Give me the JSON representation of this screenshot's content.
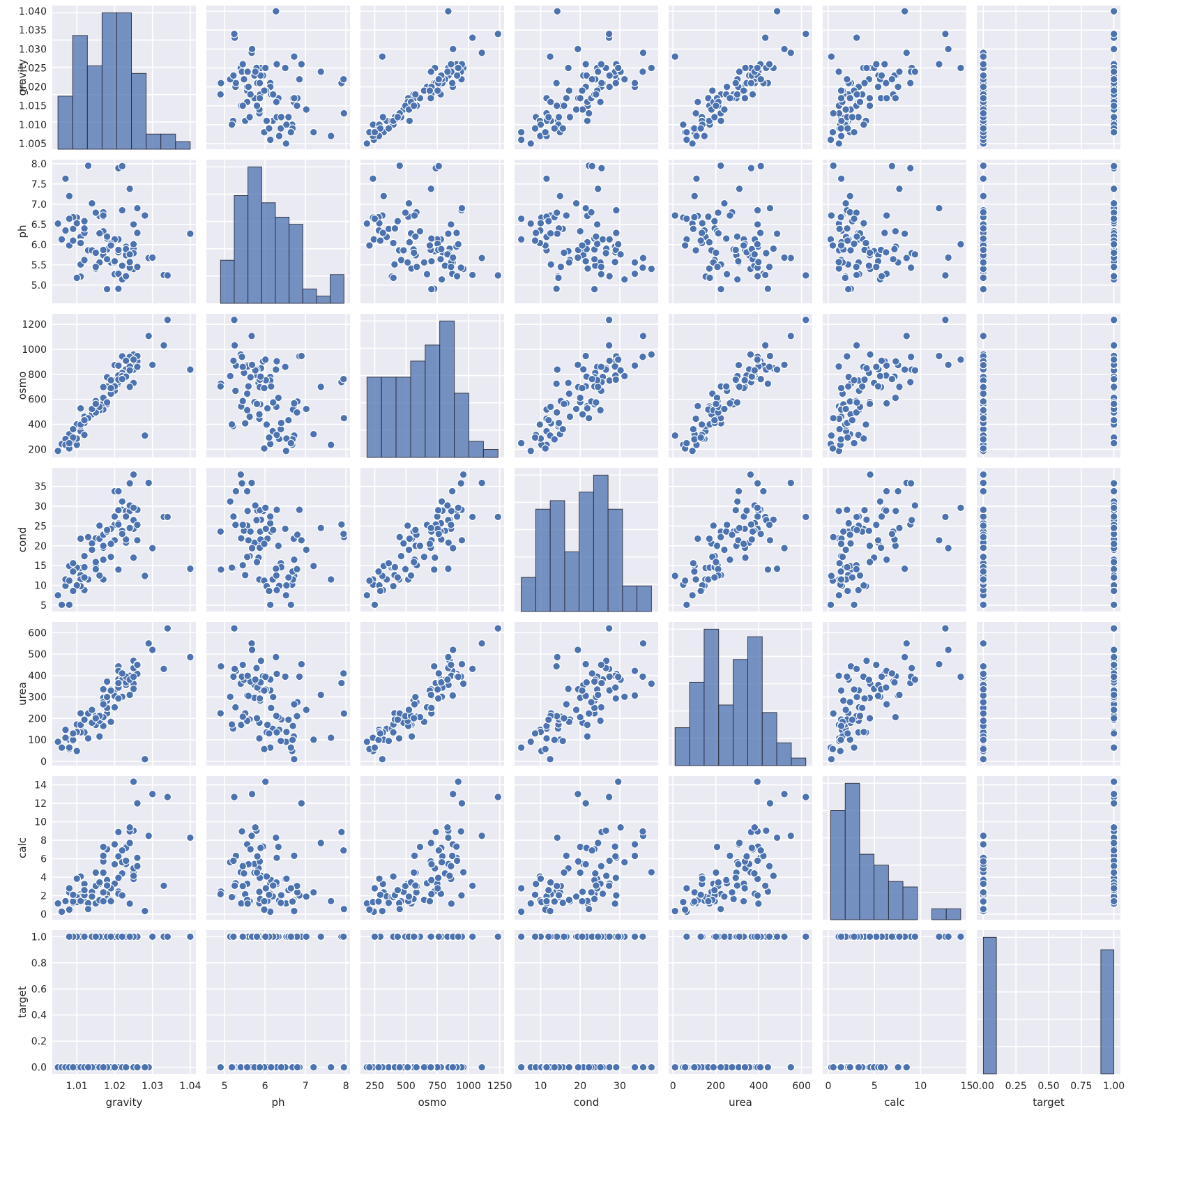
{
  "chart_data": {
    "type": "scatter",
    "layout": "pairplot",
    "grid": true,
    "variables": [
      {
        "name": "gravity",
        "range": [
          1.0035,
          1.0415
        ],
        "ticks": [
          1.01,
          1.02,
          1.03,
          1.04
        ],
        "tick_labels": [
          "1.01",
          "1.02",
          "1.03",
          "1.04"
        ],
        "ytick_labels": [
          "1.005",
          "1.010",
          "1.015",
          "1.020",
          "1.025",
          "1.030",
          "1.035",
          "1.040"
        ],
        "yticks": [
          1.005,
          1.01,
          1.015,
          1.02,
          1.025,
          1.03,
          1.035,
          1.04
        ]
      },
      {
        "name": "ph",
        "range": [
          4.55,
          8.1
        ],
        "ticks": [
          5,
          6,
          7,
          8
        ],
        "tick_labels": [
          "5",
          "6",
          "7",
          "8"
        ],
        "yticks": [
          5.0,
          5.5,
          6.0,
          6.5,
          7.0,
          7.5,
          8.0
        ],
        "ytick_labels": [
          "5.0",
          "5.5",
          "6.0",
          "6.5",
          "7.0",
          "7.5",
          "8.0"
        ]
      },
      {
        "name": "osmo",
        "range": [
          135,
          1285
        ],
        "ticks": [
          250,
          500,
          750,
          1000,
          1250
        ],
        "tick_labels": [
          "250",
          "500",
          "750",
          "1000",
          "1250"
        ],
        "yticks": [
          200,
          400,
          600,
          800,
          1000,
          1200
        ],
        "ytick_labels": [
          "200",
          "400",
          "600",
          "800",
          "1000",
          "1200"
        ]
      },
      {
        "name": "cond",
        "range": [
          3.4,
          39.7
        ],
        "ticks": [
          10,
          20,
          30
        ],
        "tick_labels": [
          "10",
          "20",
          "30"
        ],
        "yticks": [
          5,
          10,
          15,
          20,
          25,
          30,
          35
        ],
        "ytick_labels": [
          "5",
          "10",
          "15",
          "20",
          "25",
          "30",
          "35"
        ]
      },
      {
        "name": "urea",
        "range": [
          -20,
          650
        ],
        "ticks": [
          0,
          200,
          400,
          600
        ],
        "tick_labels": [
          "0",
          "200",
          "400",
          "600"
        ],
        "yticks": [
          0,
          100,
          200,
          300,
          400,
          500,
          600
        ],
        "ytick_labels": [
          "0",
          "100",
          "200",
          "300",
          "400",
          "500",
          "600"
        ]
      },
      {
        "name": "calc",
        "range": [
          -0.6,
          14.95
        ],
        "ticks": [
          0,
          5,
          10,
          15
        ],
        "tick_labels": [
          "0",
          "5",
          "10",
          "15"
        ],
        "yticks": [
          0,
          2,
          4,
          6,
          8,
          10,
          12,
          14
        ],
        "ytick_labels": [
          "0",
          "2",
          "4",
          "6",
          "8",
          "10",
          "12",
          "14"
        ]
      },
      {
        "name": "target",
        "range": [
          -0.05,
          1.05
        ],
        "ticks": [
          0,
          0.25,
          0.5,
          0.75,
          1.0
        ],
        "tick_labels": [
          "0.00",
          "0.25",
          "0.50",
          "0.75",
          "1.00"
        ],
        "yticks": [
          0,
          0.2,
          0.4,
          0.6,
          0.8,
          1.0
        ],
        "ytick_labels": [
          "0.0",
          "0.2",
          "0.4",
          "0.6",
          "0.8",
          "1.0"
        ]
      }
    ],
    "columns": [
      "gravity",
      "ph",
      "osmo",
      "cond",
      "urea",
      "calc",
      "target"
    ],
    "rows": [
      [
        1.021,
        4.91,
        725,
        14.0,
        443,
        2.45,
        0
      ],
      [
        1.017,
        5.74,
        577,
        20.0,
        296,
        4.49,
        0
      ],
      [
        1.008,
        7.2,
        321,
        14.9,
        101,
        2.36,
        0
      ],
      [
        1.011,
        5.51,
        408,
        12.6,
        224,
        2.15,
        0
      ],
      [
        1.005,
        6.52,
        187,
        7.5,
        91,
        1.16,
        0
      ],
      [
        1.02,
        5.27,
        668,
        25.3,
        252,
        3.34,
        0
      ],
      [
        1.012,
        5.62,
        461,
        17.4,
        195,
        1.4,
        0
      ],
      [
        1.029,
        5.67,
        1107,
        35.9,
        550,
        8.48,
        0
      ],
      [
        1.015,
        5.41,
        543,
        21.9,
        170,
        1.16,
        0
      ],
      [
        1.021,
        6.13,
        779,
        25.7,
        382,
        2.21,
        0
      ],
      [
        1.011,
        6.19,
        345,
        11.5,
        152,
        1.93,
        0
      ],
      [
        1.025,
        5.4,
        959,
        38.0,
        362,
        4.54,
        0
      ],
      [
        1.006,
        6.13,
        242,
        5.1,
        64,
        0.27,
        0
      ],
      [
        1.007,
        6.35,
        283,
        9.9,
        147,
        1.47,
        0
      ],
      [
        1.011,
        5.21,
        386,
        14.4,
        153,
        1.87,
        0
      ],
      [
        1.018,
        4.9,
        703,
        23.6,
        224,
        2.17,
        0
      ],
      [
        1.007,
        7.63,
        235,
        11.5,
        110,
        1.41,
        0
      ],
      [
        1.025,
        5.84,
        731,
        17.0,
        338,
        4.96,
        0
      ],
      [
        1.012,
        6.29,
        315,
        8.8,
        135,
        3.27,
        0
      ],
      [
        1.02,
        6.13,
        750,
        27.4,
        331,
        3.3,
        0
      ],
      [
        1.01,
        5.18,
        399,
        14.5,
        172,
        1.84,
        0
      ],
      [
        1.013,
        5.86,
        445,
        11.5,
        107,
        1.18,
        0
      ],
      [
        1.009,
        6.39,
        361,
        15.6,
        95,
        1.22,
        0
      ],
      [
        1.01,
        6.67,
        236,
        10.2,
        48,
        1.31,
        0
      ],
      [
        1.016,
        6.71,
        546,
        21.8,
        116,
        1.52,
        0
      ],
      [
        1.022,
        6.85,
        944,
        29.1,
        395,
        2.03,
        0
      ],
      [
        1.014,
        5.86,
        480,
        20.6,
        180,
        2.42,
        0
      ],
      [
        1.011,
        6.06,
        528,
        21.8,
        170,
        1.43,
        0
      ],
      [
        1.018,
        5.88,
        560,
        23.6,
        283,
        1.64,
        0
      ],
      [
        1.025,
        6.5,
        860,
        24.3,
        395,
        3.81,
        0
      ],
      [
        1.026,
        6.29,
        905,
        29.1,
        408,
        6.1,
        0
      ],
      [
        1.008,
        5.98,
        207,
        11.2,
        57,
        0.49,
        0
      ],
      [
        1.012,
        6.4,
        411,
        14.6,
        195,
        2.05,
        0
      ],
      [
        1.028,
        6.72,
        310,
        12.4,
        10,
        0.34,
        0
      ],
      [
        1.019,
        5.56,
        645,
        17.2,
        184,
        1.55,
        0
      ],
      [
        1.017,
        6.69,
        518,
        11.5,
        165,
        1.4,
        0
      ],
      [
        1.023,
        5.74,
        840,
        20.8,
        356,
        5.43,
        0
      ],
      [
        1.018,
        6.15,
        703,
        23.6,
        249,
        3.68,
        0
      ],
      [
        1.009,
        6.68,
        280,
        13.5,
        100,
        1.37,
        0
      ],
      [
        1.017,
        6.8,
        583,
        22.8,
        276,
        2.36,
        0
      ],
      [
        1.013,
        7.95,
        449,
        22.2,
        223,
        0.55,
        0
      ],
      [
        1.016,
        5.56,
        513,
        25.1,
        189,
        3.29,
        0
      ],
      [
        1.02,
        5.56,
        874,
        33.8,
        307,
        7.56,
        0
      ],
      [
        1.017,
        5.87,
        698,
        19.5,
        336,
        5.71,
        0
      ],
      [
        1.015,
        5.45,
        586,
        15.1,
        208,
        3.04,
        1
      ],
      [
        1.021,
        5.28,
        870,
        33.8,
        422,
        6.31,
        1
      ],
      [
        1.022,
        5.48,
        812,
        23.8,
        380,
        4.41,
        1
      ],
      [
        1.021,
        5.81,
        791,
        28.9,
        344,
        6.26,
        1
      ],
      [
        1.033,
        5.25,
        1032,
        27.3,
        431,
        3.07,
        1
      ],
      [
        1.025,
        5.9,
        849,
        26.6,
        469,
        4.15,
        1
      ],
      [
        1.021,
        7.89,
        738,
        25.4,
        365,
        8.89,
        1
      ],
      [
        1.011,
        6.04,
        398,
        9.8,
        135,
        4.08,
        1
      ],
      [
        1.034,
        5.24,
        1236,
        27.3,
        620,
        12.68,
        1
      ],
      [
        1.023,
        5.95,
        904,
        28.8,
        397,
        7.31,
        1
      ],
      [
        1.017,
        6.72,
        568,
        16.5,
        266,
        6.32,
        1
      ],
      [
        1.018,
        5.64,
        777,
        23.6,
        372,
        7.03,
        1
      ],
      [
        1.025,
        5.79,
        838,
        26.5,
        435,
        9.04,
        1
      ],
      [
        1.022,
        5.14,
        786,
        31.2,
        301,
        5.62,
        1
      ],
      [
        1.017,
        6.33,
        612,
        20.0,
        206,
        7.28,
        1
      ],
      [
        1.024,
        5.43,
        940,
        35.8,
        395,
        8.96,
        1
      ],
      [
        1.019,
        6.02,
        753,
        24.3,
        335,
        2.8,
        1
      ],
      [
        1.024,
        5.57,
        863,
        28.8,
        399,
        1.14,
        1
      ],
      [
        1.026,
        6.9,
        947,
        21.4,
        453,
        12.0,
        1
      ],
      [
        1.01,
        6.53,
        286,
        10.0,
        137,
        3.84,
        1
      ],
      [
        1.04,
        6.27,
        838,
        14.2,
        486,
        8.28,
        1
      ],
      [
        1.02,
        5.59,
        704,
        21.4,
        305,
        5.4,
        1
      ],
      [
        1.021,
        5.87,
        758,
        29.0,
        293,
        3.93,
        1
      ],
      [
        1.015,
        6.79,
        495,
        14.1,
        211,
        3.05,
        1
      ],
      [
        1.023,
        5.89,
        782,
        21.6,
        368,
        7.17,
        1
      ],
      [
        1.016,
        6.28,
        540,
        12.5,
        212,
        3.44,
        1
      ],
      [
        1.023,
        5.22,
        909,
        27.4,
        395,
        5.78,
        1
      ],
      [
        1.018,
        6.2,
        575,
        24.0,
        300,
        3.1,
        1
      ],
      [
        1.009,
        6.1,
        294,
        8.6,
        130,
        2.1,
        1
      ],
      [
        1.026,
        5.45,
        860,
        25.3,
        450,
        5.2,
        1
      ],
      [
        1.022,
        7.94,
        762,
        23.0,
        410,
        6.9,
        1
      ],
      [
        1.014,
        7.02,
        523,
        19.0,
        240,
        1.9,
        1
      ],
      [
        1.012,
        6.58,
        433,
        12.0,
        194,
        2.6,
        1
      ],
      [
        1.024,
        5.76,
        832,
        30.2,
        381,
        9.39,
        1
      ],
      [
        1.03,
        5.68,
        876,
        19.4,
        520,
        13.0,
        1
      ],
      [
        1.019,
        5.98,
        690,
        20.5,
        330,
        1.4,
        1
      ],
      [
        1.015,
        5.8,
        563,
        15.9,
        201,
        4.5,
        1
      ],
      [
        1.008,
        6.64,
        249,
        5.1,
        64,
        2.8,
        1
      ],
      [
        1.025,
        6.01,
        918,
        29.6,
        394,
        14.34,
        1
      ],
      [
        1.024,
        7.38,
        700,
        24.5,
        310,
        7.7,
        1
      ]
    ]
  }
}
